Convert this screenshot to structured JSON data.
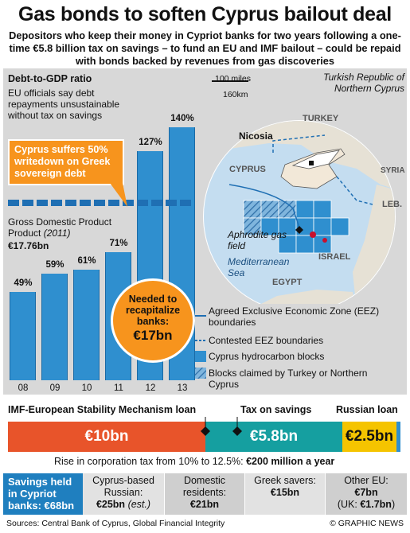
{
  "title": "Gas bonds to soften Cyprus bailout deal",
  "subtitle": "Depositors who keep their money in Cypriot banks for two years following a one-time €5.8 billion tax on savings – to fund an EU and IMF bailout – could be repaid with bonds backed by revenues from gas discoveries",
  "debt_chart": {
    "heading": "Debt-to-GDP ratio",
    "note": "EU officials say debt repayments unsustainable without tax on savings",
    "gdp_label": "Gross Domestic Product",
    "gdp_year": "(2011)",
    "gdp_value": "€17.76bn",
    "callout": "Cyprus suffers 50% writedown on Greek sovereign debt",
    "recap_line1": "Needed to",
    "recap_line2": "recapitalize",
    "recap_line3": "banks:",
    "recap_value": "€17bn"
  },
  "chart_data": {
    "type": "bar",
    "title": "Debt-to-GDP ratio",
    "categories": [
      "08",
      "09",
      "10",
      "11",
      "12",
      "13"
    ],
    "values": [
      49,
      59,
      61,
      71,
      127,
      140
    ],
    "value_labels": [
      "49%",
      "59%",
      "61%",
      "71%",
      "127%",
      "140%"
    ],
    "reference_line": {
      "label": "Gross Domestic Product (2011) €17.76bn",
      "value": 100
    },
    "ylim": [
      0,
      150
    ],
    "bar_color": "#2f8fcf"
  },
  "map": {
    "scale_miles": "100 miles",
    "scale_km": "160km",
    "northern_cyprus": "Turkish Republic of Northern Cyprus",
    "turkey": "TURKEY",
    "nicosia": "Nicosia",
    "cyprus": "CYPRUS",
    "leb": "LEB.",
    "syria": "SYRIA",
    "aphrodite": "Aphrodite gas field",
    "sea": "Mediterranean Sea",
    "israel": "ISRAEL",
    "egypt": "EGYPT"
  },
  "legend": {
    "eez": "Agreed Exclusive Economic Zone (EEZ) boundaries",
    "contested": "Contested EEZ boundaries",
    "blocks": "Cyprus hydrocarbon blocks",
    "claimed": "Blocks claimed by Turkey or Northern Cyprus"
  },
  "loans": {
    "imf_head": "IMF-European Stability Mechanism loan",
    "tax_head": "Tax on savings",
    "russian_head": "Russian loan",
    "imf_value": "€10bn",
    "tax_value": "€5.8bn",
    "russian_value": "€2.5bn",
    "corp_tax_text": "Rise in corporation tax from 10% to 12.5%:",
    "corp_tax_value": "€200 million a year"
  },
  "savings": {
    "head": "Savings held in Cypriot banks: €68bn",
    "russian_label": "Cyprus-based Russian:",
    "russian_value": "€25bn",
    "russian_note": "(est.)",
    "domestic_label": "Domestic residents:",
    "domestic_value": "€21bn",
    "greek_label": "Greek savers:",
    "greek_value": "€15bn",
    "other_label": "Other EU:",
    "other_value": "€7bn",
    "uk_text": "(UK:",
    "uk_value": "€1.7bn",
    "uk_close": ")"
  },
  "footer": {
    "sources": "Sources: Central Bank of Cyprus, Global Financial Integrity",
    "credit": "© GRAPHIC NEWS"
  },
  "colors": {
    "imf": "#e8542a",
    "tax": "#159fa0",
    "russian": "#f5c400",
    "bar": "#2f8fcf",
    "orange": "#f7941d",
    "savings_head": "#1f7fbf"
  }
}
